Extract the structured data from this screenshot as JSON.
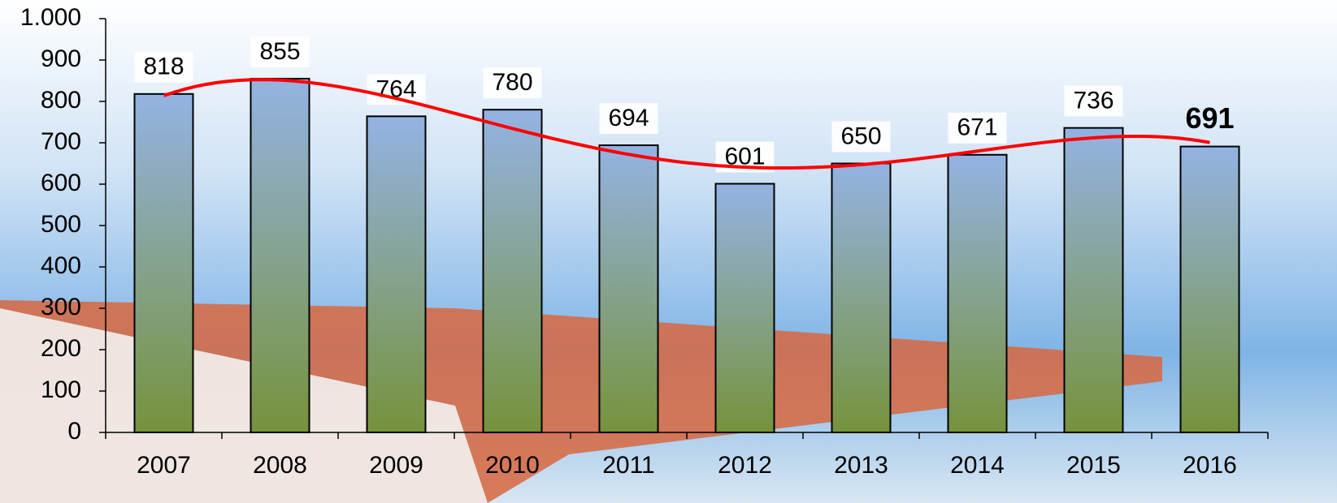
{
  "chart_data": {
    "type": "bar",
    "categories": [
      "2007",
      "2008",
      "2009",
      "2010",
      "2011",
      "2012",
      "2013",
      "2014",
      "2015",
      "2016"
    ],
    "values": [
      818,
      855,
      764,
      780,
      694,
      601,
      650,
      671,
      736,
      691
    ],
    "value_label_colors": [
      "#000000",
      "#000000",
      "#000000",
      "#000000",
      "#000000",
      "#000000",
      "#000000",
      "#000000",
      "#000000",
      "#ff0000"
    ],
    "color_top": "#94b3e3",
    "color_bottom": "#76923c",
    "trend_color": "#ff0000",
    "ylim": [
      0,
      1000
    ],
    "yticks": [
      0,
      100,
      200,
      300,
      400,
      500,
      600,
      700,
      800,
      900,
      {
        "value": 1000,
        "label": "1.000"
      }
    ],
    "grid": false
  }
}
